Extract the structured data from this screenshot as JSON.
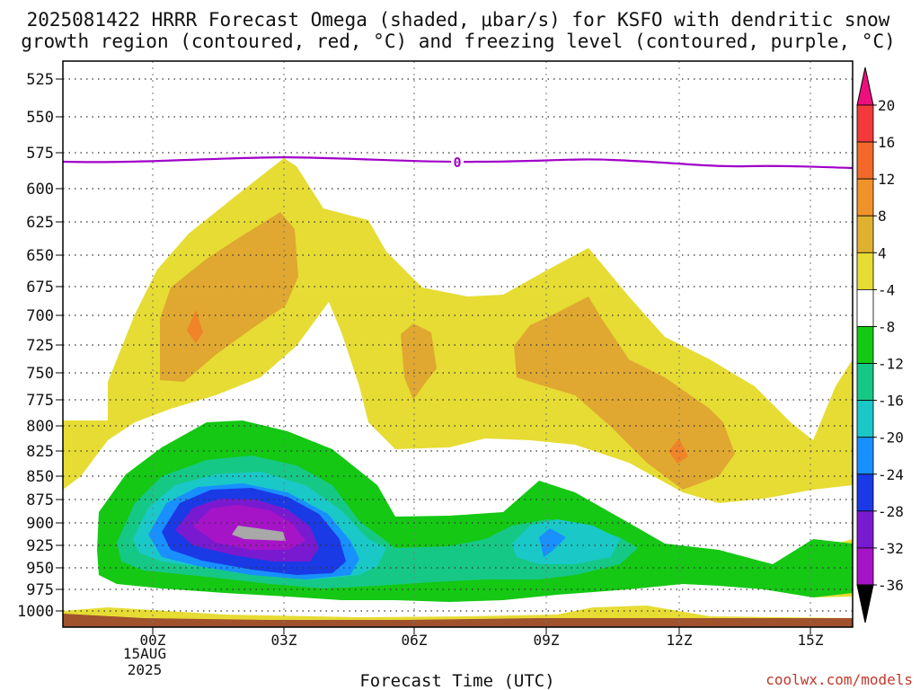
{
  "chart_data": {
    "type": "heatmap",
    "title_lines": [
      "2025081422 HRRR Forecast Omega (shaded, μbar/s) for KSFO with dendritic snow",
      "growth region (contoured, red, °C) and freezing level (contoured, purple, °C)"
    ],
    "xlabel": "Forecast Time (UTC)",
    "ylabel": "",
    "x_ticks": [
      "00Z",
      "03Z",
      "06Z",
      "09Z",
      "12Z",
      "15Z"
    ],
    "x_tick_sublabels": [
      "15AUG",
      "2025"
    ],
    "y_ticks": [
      525,
      550,
      575,
      600,
      625,
      650,
      675,
      700,
      725,
      750,
      775,
      800,
      825,
      850,
      875,
      900,
      925,
      950,
      975,
      1000
    ],
    "y_scale": "log-pressure (inverted)",
    "grid": true,
    "colorbar": {
      "labels": [
        "20",
        "16",
        "12",
        "8",
        "4",
        "-4",
        "-8",
        "-12",
        "-16",
        "-20",
        "-24",
        "-28",
        "-32",
        "-36"
      ],
      "colors": [
        "#ee0f7e",
        "#f23a3a",
        "#f16a2a",
        "#f0922a",
        "#e0b030",
        "#e6dc34",
        "#ffffff",
        "#14c814",
        "#16c885",
        "#1ac8c8",
        "#1890ff",
        "#1a3ae6",
        "#7a1ad0",
        "#a614c8",
        "#a8a8a8",
        "#000000"
      ]
    },
    "freezing_level": {
      "label": "0",
      "color": "#a000c8",
      "approx_pressure_hPa": 580
    },
    "shading_fill": {
      "weak_pos": "#e6dc34",
      "pos_8_12": "#e0a830",
      "pos_12_16": "#f08428",
      "neg_4_8": "#14c814",
      "neg_8_12": "#16c885",
      "neg_12_16": "#1ac8c8",
      "neg_16_20": "#1890ff",
      "neg_20_24": "#1a3ae6",
      "neg_24_28": "#7a1ad0",
      "neg_28_32": "#a614c8",
      "neg_32_36": "#a8a8a8",
      "surface": "#a0522d"
    },
    "credit": "coolwx.com/models"
  }
}
